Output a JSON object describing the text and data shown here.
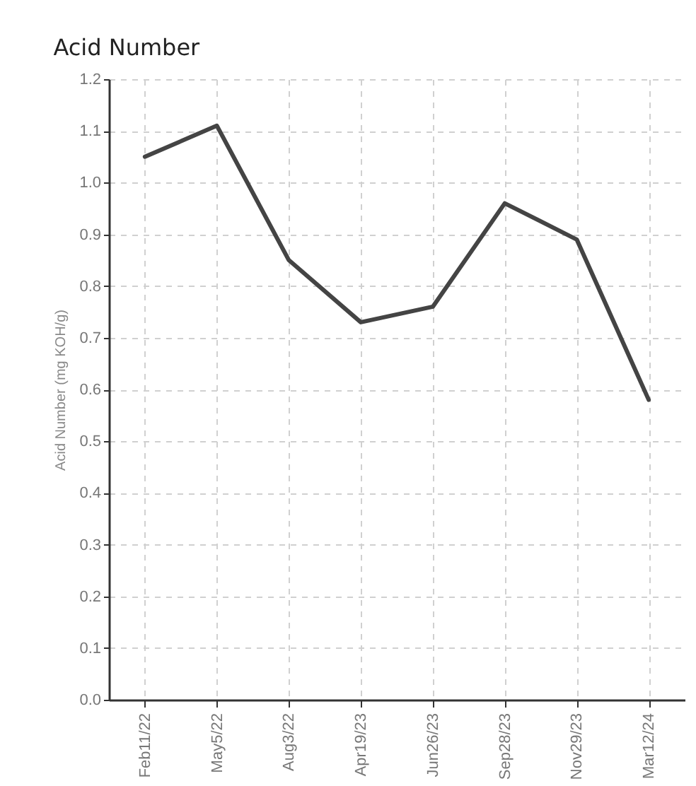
{
  "chart_data": {
    "type": "line",
    "title": "Acid Number",
    "ylabel": "Acid Number (mg KOH/g)",
    "categories": [
      "Feb11/22",
      "May5/22",
      "Aug3/22",
      "Apr19/23",
      "Jun26/23",
      "Sep28/23",
      "Nov29/23",
      "Mar12/24"
    ],
    "series": [
      {
        "color": "#444444",
        "values": [
          1.05,
          1.11,
          0.85,
          0.73,
          0.76,
          0.96,
          0.89,
          0.58
        ]
      }
    ],
    "ylim": [
      0,
      1.2
    ],
    "yticks": [
      {
        "value": 0,
        "label": "0.0"
      },
      0.1,
      0.2,
      0.3,
      0.4,
      0.5,
      0.6,
      0.7,
      0.8,
      0.9,
      {
        "value": 1,
        "label": "1.0"
      },
      1.1,
      1.2
    ],
    "grid": true,
    "legend": false,
    "marker": "none",
    "line_style": "solid"
  }
}
